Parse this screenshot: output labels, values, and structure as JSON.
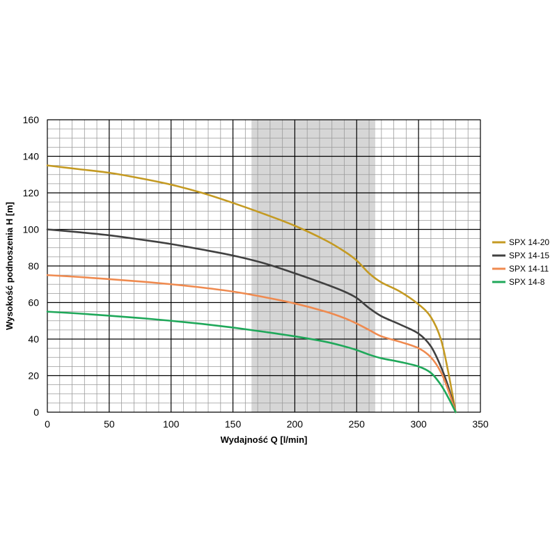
{
  "chart_data": {
    "type": "line",
    "xlabel": "Wydajność Q [l/min]",
    "ylabel": "Wysokość podnoszenia H [m]",
    "xlim": [
      0,
      350
    ],
    "ylim": [
      0,
      160
    ],
    "x_ticks": [
      "0",
      "50",
      "100",
      "150",
      "200",
      "250",
      "300",
      "350"
    ],
    "y_ticks": [
      "0",
      "20",
      "40",
      "60",
      "80",
      "100",
      "120",
      "140",
      "160"
    ],
    "grid": true,
    "legend_position": "right",
    "shaded_range": [
      165,
      265
    ],
    "shaded_color": "#d6d6d6",
    "series": [
      {
        "name": "SPX 14-20",
        "color": "#c49a22",
        "points": [
          [
            0,
            135
          ],
          [
            25,
            133
          ],
          [
            50,
            131
          ],
          [
            75,
            128
          ],
          [
            100,
            124.5
          ],
          [
            125,
            120
          ],
          [
            150,
            114.5
          ],
          [
            175,
            108.5
          ],
          [
            200,
            102
          ],
          [
            225,
            94
          ],
          [
            240,
            88
          ],
          [
            250,
            83
          ],
          [
            260,
            76
          ],
          [
            270,
            71
          ],
          [
            285,
            66
          ],
          [
            300,
            59
          ],
          [
            310,
            52
          ],
          [
            318,
            40
          ],
          [
            324,
            22
          ],
          [
            330,
            0
          ]
        ]
      },
      {
        "name": "SPX 14-15",
        "color": "#404040",
        "points": [
          [
            0,
            100
          ],
          [
            25,
            98.5
          ],
          [
            50,
            96.8
          ],
          [
            75,
            94.5
          ],
          [
            100,
            92
          ],
          [
            125,
            89
          ],
          [
            150,
            85.7
          ],
          [
            175,
            81.5
          ],
          [
            200,
            76
          ],
          [
            225,
            70
          ],
          [
            240,
            66
          ],
          [
            250,
            62.5
          ],
          [
            260,
            57
          ],
          [
            270,
            52.5
          ],
          [
            285,
            48
          ],
          [
            300,
            43
          ],
          [
            310,
            36
          ],
          [
            318,
            25
          ],
          [
            324,
            14
          ],
          [
            330,
            0
          ]
        ]
      },
      {
        "name": "SPX 14-11",
        "color": "#ef8a4f",
        "points": [
          [
            0,
            75
          ],
          [
            25,
            74
          ],
          [
            50,
            72.8
          ],
          [
            75,
            71.5
          ],
          [
            100,
            70
          ],
          [
            125,
            68.2
          ],
          [
            150,
            66
          ],
          [
            175,
            63
          ],
          [
            200,
            59.5
          ],
          [
            225,
            55
          ],
          [
            240,
            51.5
          ],
          [
            250,
            48.5
          ],
          [
            260,
            45
          ],
          [
            270,
            41.5
          ],
          [
            285,
            38.5
          ],
          [
            300,
            35
          ],
          [
            310,
            30
          ],
          [
            318,
            22
          ],
          [
            324,
            12
          ],
          [
            330,
            0
          ]
        ]
      },
      {
        "name": "SPX 14-8",
        "color": "#1fa85a",
        "points": [
          [
            0,
            55
          ],
          [
            25,
            54
          ],
          [
            50,
            52.8
          ],
          [
            75,
            51.5
          ],
          [
            100,
            50
          ],
          [
            125,
            48.3
          ],
          [
            150,
            46.3
          ],
          [
            175,
            44
          ],
          [
            200,
            41.5
          ],
          [
            225,
            38.5
          ],
          [
            240,
            36
          ],
          [
            250,
            34
          ],
          [
            260,
            31.5
          ],
          [
            270,
            29.5
          ],
          [
            285,
            27.5
          ],
          [
            300,
            25
          ],
          [
            310,
            21.5
          ],
          [
            318,
            15
          ],
          [
            324,
            8
          ],
          [
            330,
            0
          ]
        ]
      }
    ]
  }
}
